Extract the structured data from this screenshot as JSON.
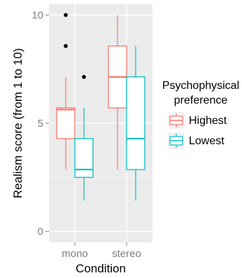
{
  "chart_data": {
    "type": "boxplot",
    "xlabel": "Condition",
    "ylabel": "Realism score (from 1 to 10)",
    "ylim": [
      -0.5,
      10.5
    ],
    "y_ticks": [
      0,
      5,
      10
    ],
    "categories": [
      "mono",
      "stereo"
    ],
    "grid": true,
    "legend_position": "right",
    "legend_title": [
      "Psychophysical",
      "preference"
    ],
    "series": [
      {
        "name": "Highest",
        "color": "#F8766D",
        "boxes": [
          {
            "category": "mono",
            "whisker_low": 2.86,
            "q1": 4.29,
            "median": 5.63,
            "q3": 5.71,
            "whisker_high": 7.14,
            "outliers": [
              8.57,
              10.0
            ]
          },
          {
            "category": "stereo",
            "whisker_low": 2.86,
            "q1": 5.71,
            "median": 7.14,
            "q3": 8.57,
            "whisker_high": 10.0,
            "outliers": []
          }
        ]
      },
      {
        "name": "Lowest",
        "color": "#00BFC4",
        "boxes": [
          {
            "category": "mono",
            "whisker_low": 1.43,
            "q1": 2.5,
            "median": 2.86,
            "q3": 4.29,
            "whisker_high": 5.71,
            "outliers": [
              7.14
            ]
          },
          {
            "category": "stereo",
            "whisker_low": 1.43,
            "q1": 2.86,
            "median": 4.29,
            "q3": 7.14,
            "whisker_high": 8.57,
            "outliers": []
          }
        ]
      }
    ]
  },
  "colors": {
    "panel_background": "#EBEBEB",
    "grid_line": "#FFFFFF",
    "tick_text": "#7F7F7F",
    "outlier": "#000000"
  }
}
